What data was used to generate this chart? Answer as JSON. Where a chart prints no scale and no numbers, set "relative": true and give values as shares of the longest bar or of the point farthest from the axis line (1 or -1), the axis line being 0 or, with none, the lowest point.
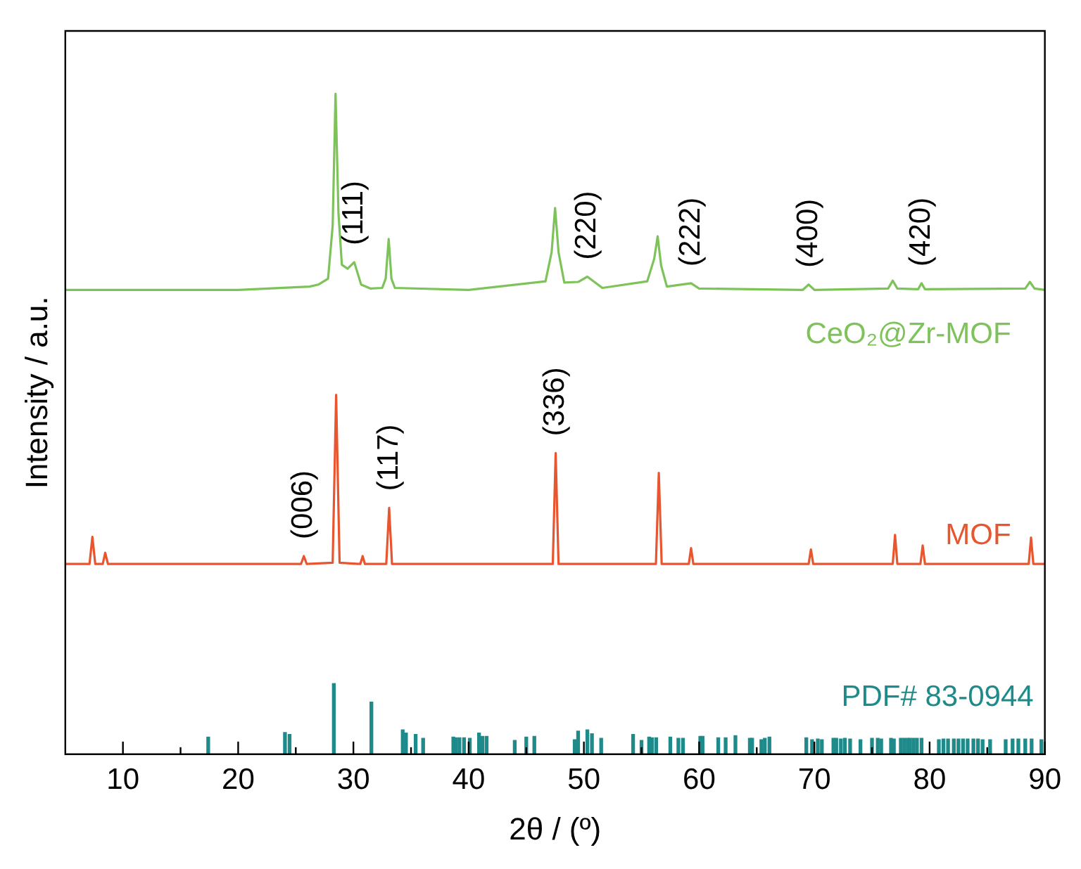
{
  "chart_data": {
    "type": "line",
    "relative": true,
    "xlabel": "2θ / (º)",
    "ylabel": "Intensity / a.u.",
    "xlim": [
      5,
      90
    ],
    "xticks": [
      10,
      {
        "value": 15,
        "label": null
      },
      20,
      {
        "value": 25,
        "label": null
      },
      30,
      {
        "value": 35,
        "label": null
      },
      40,
      {
        "value": 45,
        "label": null
      },
      50,
      {
        "value": 55,
        "label": null
      },
      60,
      {
        "value": 65,
        "label": null
      },
      70,
      {
        "value": 75,
        "label": null
      },
      80,
      {
        "value": 85,
        "label": null
      },
      90
    ],
    "legend": false,
    "grid": false,
    "marker": "none",
    "line_style": "solid",
    "tick_labels": "x",
    "series": [
      {
        "name": "CeO₂@Zr-MOF",
        "color": "#7dc35a",
        "x": [
          5,
          20,
          26.2,
          26.95,
          27.8,
          28.2,
          28.45,
          28.7,
          29.0,
          29.5,
          30.07,
          30.67,
          31.5,
          32.5,
          32.8,
          33.06,
          33.3,
          33.6,
          40,
          46.67,
          47.2,
          47.5,
          47.8,
          48.3,
          49.5,
          50.3,
          51.6,
          55.5,
          56.1,
          56.4,
          56.7,
          57.2,
          59.3,
          60.0,
          69.0,
          69.5,
          70,
          76.4,
          76.8,
          77.2,
          79.0,
          79.3,
          79.6,
          88.3,
          88.7,
          89.1,
          90
        ],
        "values": [
          0.703,
          0.703,
          0.708,
          0.711,
          0.72,
          0.8,
          1.0,
          0.82,
          0.741,
          0.735,
          0.745,
          0.711,
          0.705,
          0.706,
          0.72,
          0.78,
          0.72,
          0.706,
          0.703,
          0.716,
          0.76,
          0.827,
          0.76,
          0.714,
          0.715,
          0.723,
          0.706,
          0.716,
          0.75,
          0.784,
          0.74,
          0.708,
          0.713,
          0.705,
          0.703,
          0.711,
          0.703,
          0.705,
          0.717,
          0.705,
          0.704,
          0.713,
          0.704,
          0.705,
          0.715,
          0.705,
          0.703
        ]
      },
      {
        "name": "MOF",
        "color": "#e8552e",
        "x": [
          5,
          7.1,
          7.35,
          7.6,
          8.25,
          8.46,
          8.7,
          25.45,
          25.7,
          25.95,
          28.2,
          28.5,
          28.8,
          30.6,
          30.8,
          31.0,
          32.85,
          33.1,
          33.35,
          47.3,
          47.55,
          47.8,
          56.25,
          56.5,
          56.75,
          59.1,
          59.3,
          59.5,
          69.5,
          69.7,
          69.9,
          76.8,
          77.0,
          77.2,
          79.2,
          79.4,
          79.6,
          88.6,
          88.8,
          89.0,
          90
        ],
        "values": [
          0.288,
          0.288,
          0.329,
          0.288,
          0.288,
          0.305,
          0.288,
          0.288,
          0.3,
          0.288,
          0.29,
          0.544,
          0.29,
          0.288,
          0.3,
          0.288,
          0.288,
          0.373,
          0.288,
          0.288,
          0.456,
          0.288,
          0.288,
          0.426,
          0.288,
          0.288,
          0.312,
          0.288,
          0.288,
          0.31,
          0.288,
          0.288,
          0.332,
          0.288,
          0.288,
          0.316,
          0.288,
          0.288,
          0.328,
          0.288,
          0.288
        ]
      },
      {
        "name": "PDF# 83-0944",
        "color": "#1f8a8a",
        "type": "bar",
        "x": [
          17.4,
          24.06,
          24.46,
          28.3,
          31.56,
          34.28,
          34.56,
          35.4,
          36.05,
          38.67,
          38.89,
          39.2,
          39.6,
          40.1,
          40.9,
          41.2,
          41.56,
          44.0,
          45.0,
          45.7,
          49.2,
          49.5,
          50.3,
          50.7,
          51.5,
          54.27,
          55.0,
          55.66,
          55.9,
          56.27,
          57.5,
          58.2,
          58.6,
          60.1,
          60.3,
          61.66,
          62.3,
          63.15,
          64.4,
          64.6,
          65.4,
          65.7,
          66.1,
          69.3,
          69.8,
          70.3,
          70.65,
          71.65,
          71.9,
          72.3,
          72.65,
          73.1,
          74.0,
          75.0,
          75.5,
          75.8,
          76.65,
          76.9,
          77.5,
          77.8,
          78.1,
          78.3,
          78.6,
          78.9,
          79.3,
          80.8,
          81.2,
          81.6,
          82.1,
          82.5,
          82.9,
          83.3,
          83.8,
          84.2,
          84.6,
          85.25,
          86.6,
          87.2,
          87.7,
          88.3,
          88.85,
          89.7
        ],
        "values": [
          0.026,
          0.033,
          0.03,
          0.107,
          0.079,
          0.037,
          0.032,
          0.03,
          0.024,
          0.026,
          0.025,
          0.025,
          0.025,
          0.024,
          0.032,
          0.027,
          0.027,
          0.021,
          0.026,
          0.027,
          0.022,
          0.035,
          0.037,
          0.031,
          0.024,
          0.03,
          0.021,
          0.026,
          0.025,
          0.025,
          0.026,
          0.024,
          0.024,
          0.027,
          0.027,
          0.025,
          0.025,
          0.028,
          0.024,
          0.024,
          0.022,
          0.024,
          0.026,
          0.025,
          0.022,
          0.023,
          0.022,
          0.024,
          0.024,
          0.023,
          0.024,
          0.023,
          0.022,
          0.024,
          0.024,
          0.023,
          0.024,
          0.023,
          0.024,
          0.024,
          0.024,
          0.024,
          0.024,
          0.024,
          0.024,
          0.022,
          0.023,
          0.023,
          0.023,
          0.023,
          0.023,
          0.023,
          0.023,
          0.023,
          0.022,
          0.022,
          0.022,
          0.023,
          0.023,
          0.023,
          0.023,
          0.022
        ]
      }
    ],
    "annotations": [
      {
        "text": "(111)",
        "x": 30.07,
        "y": 0.745
      },
      {
        "text": "(220)",
        "x": 50.3,
        "y": 0.723
      },
      {
        "text": "(222)",
        "x": 59.3,
        "y": 0.713
      },
      {
        "text": "(400)",
        "x": 69.5,
        "y": 0.711
      },
      {
        "text": "(420)",
        "x": 79.3,
        "y": 0.713
      },
      {
        "text": "(006)",
        "x": 25.7,
        "y": 0.3
      },
      {
        "text": "(117)",
        "x": 33.1,
        "y": 0.373
      },
      {
        "text": "(336)",
        "x": 47.55,
        "y": 0.456
      }
    ]
  }
}
